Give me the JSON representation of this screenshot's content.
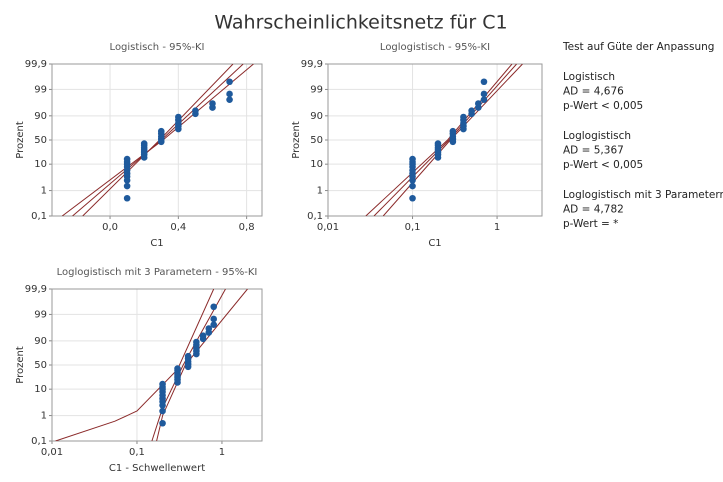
{
  "title": "Wahrscheinlichkeitsnetz für C1",
  "chart_data": [
    {
      "type": "probability",
      "title": "Logistisch - 95%-KI",
      "x_label": "C1",
      "y_label": "Prozent",
      "xscale": "linear",
      "xlim": [
        -0.34,
        0.89
      ],
      "xticks": [
        {
          "value": 0,
          "label": "0,0"
        },
        {
          "value": 0.4,
          "label": "0,4"
        },
        {
          "value": 0.8,
          "label": "0,8"
        }
      ],
      "yscale": "logistic",
      "ylim": [
        0.1,
        99.9
      ],
      "yticks": [
        {
          "value": 0.1,
          "label": "0,1"
        },
        1,
        10,
        50,
        90,
        99,
        {
          "value": 99.9,
          "label": "99,9"
        }
      ],
      "grid": true,
      "series": [
        {
          "color": "#1f5a9c",
          "x": [
            0.1,
            0.1,
            0.1,
            0.1,
            0.1,
            0.1,
            0.1,
            0.1,
            0.1,
            0.1,
            0.2,
            0.2,
            0.2,
            0.2,
            0.2,
            0.2,
            0.2,
            0.3,
            0.3,
            0.3,
            0.3,
            0.3,
            0.4,
            0.4,
            0.4,
            0.4,
            0.4,
            0.5,
            0.5,
            0.6,
            0.6,
            0.7,
            0.7,
            0.7
          ],
          "values": [
            0.5,
            1.5,
            2.5,
            3.5,
            4.5,
            6,
            8,
            10,
            12,
            15,
            17,
            21,
            25,
            29,
            33,
            38,
            42,
            46,
            52,
            58,
            64,
            69,
            73,
            78,
            82,
            86,
            89,
            91.5,
            93.5,
            95,
            96.5,
            97.5,
            98.5,
            99.5
          ]
        }
      ],
      "lines": [
        {
          "color": "#8b2a2a",
          "x": [
            -0.22,
            0.3,
            0.78
          ],
          "values": [
            0.1,
            50,
            99.9
          ]
        },
        {
          "color": "#8b2a2a",
          "x": [
            -0.16,
            0.29,
            0.72
          ],
          "values": [
            0.1,
            50,
            99.9
          ]
        },
        {
          "color": "#8b2a2a",
          "x": [
            -0.28,
            0.31,
            0.84
          ],
          "values": [
            0.1,
            50,
            99.9
          ]
        }
      ]
    },
    {
      "type": "probability",
      "title": "Loglogistisch - 95%-KI",
      "x_label": "C1",
      "y_label": "Prozent",
      "xscale": "log",
      "xlim": [
        0.01,
        3.4
      ],
      "xticks": [
        {
          "value": 0.01,
          "label": "0,01"
        },
        {
          "value": 0.1,
          "label": "0,1"
        },
        1
      ],
      "yscale": "logistic",
      "ylim": [
        0.1,
        99.9
      ],
      "yticks": [
        {
          "value": 0.1,
          "label": "0,1"
        },
        1,
        10,
        50,
        90,
        99,
        {
          "value": 99.9,
          "label": "99,9"
        }
      ],
      "grid": true,
      "series": [
        {
          "color": "#1f5a9c",
          "x": [
            0.1,
            0.1,
            0.1,
            0.1,
            0.1,
            0.1,
            0.1,
            0.1,
            0.1,
            0.1,
            0.2,
            0.2,
            0.2,
            0.2,
            0.2,
            0.2,
            0.2,
            0.3,
            0.3,
            0.3,
            0.3,
            0.3,
            0.4,
            0.4,
            0.4,
            0.4,
            0.4,
            0.5,
            0.5,
            0.6,
            0.6,
            0.7,
            0.7,
            0.7
          ],
          "values": [
            0.5,
            1.5,
            2.5,
            3.5,
            4.5,
            6,
            8,
            10,
            12,
            15,
            17,
            21,
            25,
            29,
            33,
            38,
            42,
            46,
            52,
            58,
            64,
            69,
            73,
            78,
            82,
            86,
            89,
            91.5,
            93.5,
            95,
            96.5,
            97.5,
            98.5,
            99.5
          ]
        }
      ],
      "lines": [
        {
          "color": "#8b2a2a",
          "x": [
            0.035,
            0.27,
            1.7
          ],
          "values": [
            0.1,
            50,
            99.9
          ]
        },
        {
          "color": "#8b2a2a",
          "x": [
            0.028,
            0.26,
            1.5
          ],
          "values": [
            0.1,
            50,
            99.9
          ]
        },
        {
          "color": "#8b2a2a",
          "x": [
            0.045,
            0.28,
            2.0
          ],
          "values": [
            0.1,
            50,
            99.9
          ]
        }
      ]
    },
    {
      "type": "probability",
      "title": "Loglogistisch mit 3 Parametern - 95%-KI",
      "x_label": "C1 - Schwellenwert",
      "y_label": "Prozent",
      "xscale": "log",
      "xlim": [
        0.01,
        2.96
      ],
      "xticks": [
        {
          "value": 0.01,
          "label": "0,01"
        },
        {
          "value": 0.1,
          "label": "0,1"
        },
        1
      ],
      "yscale": "logistic",
      "ylim": [
        0.1,
        99.9
      ],
      "yticks": [
        {
          "value": 0.1,
          "label": "0,1"
        },
        1,
        10,
        50,
        90,
        99,
        {
          "value": 99.9,
          "label": "99,9"
        }
      ],
      "grid": true,
      "series": [
        {
          "color": "#1f5a9c",
          "x": [
            0.2,
            0.2,
            0.2,
            0.2,
            0.2,
            0.2,
            0.2,
            0.2,
            0.2,
            0.2,
            0.3,
            0.3,
            0.3,
            0.3,
            0.3,
            0.3,
            0.3,
            0.4,
            0.4,
            0.4,
            0.4,
            0.4,
            0.5,
            0.5,
            0.5,
            0.5,
            0.5,
            0.6,
            0.6,
            0.7,
            0.7,
            0.8,
            0.8,
            0.8
          ],
          "values": [
            0.5,
            1.5,
            2.5,
            3.5,
            4.5,
            6,
            8,
            10,
            12,
            15,
            17,
            21,
            25,
            29,
            33,
            38,
            42,
            46,
            52,
            58,
            64,
            69,
            73,
            78,
            82,
            86,
            89,
            91.5,
            93.5,
            95,
            96.5,
            97.5,
            98.5,
            99.5
          ]
        }
      ],
      "lines": [
        {
          "color": "#8b2a2a",
          "x": [
            0.15,
            0.2,
            0.35,
            1.1
          ],
          "values": [
            0.1,
            2,
            50,
            99.9
          ]
        },
        {
          "color": "#8b2a2a",
          "x": [
            0.011,
            0.055,
            0.1,
            0.3,
            0.8
          ],
          "values": [
            0.1,
            0.6,
            1.5,
            40,
            99.9
          ]
        },
        {
          "color": "#8b2a2a",
          "x": [
            0.17,
            0.2,
            0.37,
            2.0
          ],
          "values": [
            0.1,
            1,
            50,
            99.9
          ]
        }
      ]
    }
  ],
  "gof": {
    "title": "Test auf Güte der Anpassung",
    "sections": [
      {
        "name": "Logistisch",
        "lines": [
          "AD = 4,676",
          "p-Wert < 0,005"
        ]
      },
      {
        "name": "Loglogistisch",
        "lines": [
          "AD = 5,367",
          "p-Wert < 0,005"
        ]
      },
      {
        "name": "Loglogistisch mit 3 Parametern",
        "lines": [
          "AD = 4,782",
          "p-Wert = *"
        ]
      }
    ]
  }
}
